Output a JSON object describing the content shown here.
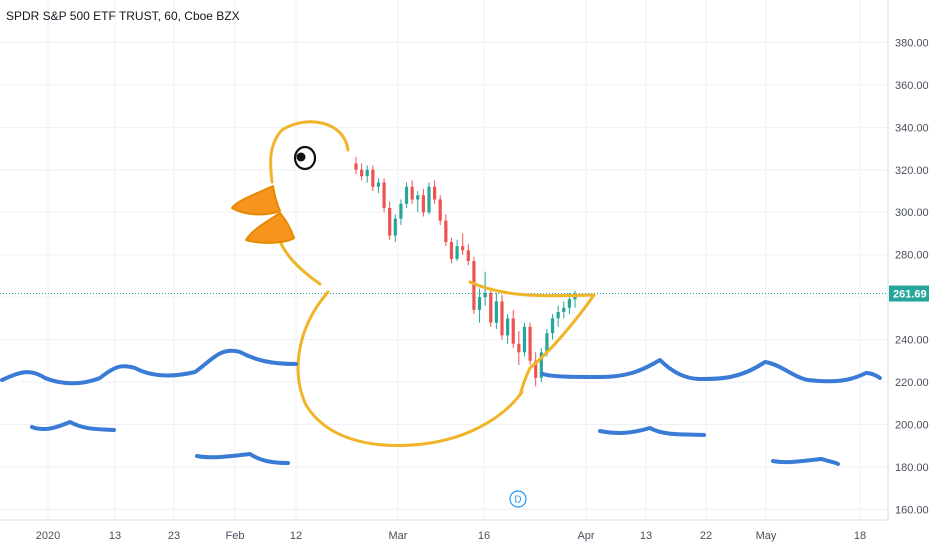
{
  "chart_data": {
    "type": "candlestick",
    "title": "SPDR S&P 500 ETF TRUST, 60, Cboe BZX",
    "y_ticks": [
      "380.00",
      "360.00",
      "340.00",
      "320.00",
      "300.00",
      "280.00",
      "260.00",
      "240.00",
      "220.00",
      "200.00",
      "180.00",
      "160.00"
    ],
    "x_ticks": [
      "2020",
      "13",
      "23",
      "Feb",
      "12",
      "Mar",
      "16",
      "Apr",
      "13",
      "22",
      "May",
      "18"
    ],
    "ylim": [
      155,
      400
    ],
    "last_price": 261.69,
    "last_price_label": "261.69",
    "event_marker": "D",
    "grid": true,
    "colors": {
      "up": "#26a69a",
      "down": "#ef5350",
      "last_price_line": "#26a69a",
      "price_tag": "#26a69a",
      "drawing_duck": "#f0b429",
      "drawing_beak": "#f57c00",
      "drawing_water": "#3a7bd5",
      "grid": "#eef0f4",
      "event": "#2196f3"
    },
    "ohlc": [
      {
        "o": 323,
        "h": 326,
        "l": 318,
        "c": 320
      },
      {
        "o": 320,
        "h": 323,
        "l": 315,
        "c": 317
      },
      {
        "o": 317,
        "h": 322,
        "l": 314,
        "c": 320
      },
      {
        "o": 320,
        "h": 322,
        "l": 310,
        "c": 312
      },
      {
        "o": 312,
        "h": 316,
        "l": 309,
        "c": 314
      },
      {
        "o": 314,
        "h": 316,
        "l": 300,
        "c": 302
      },
      {
        "o": 302,
        "h": 305,
        "l": 287,
        "c": 289
      },
      {
        "o": 289,
        "h": 299,
        "l": 286,
        "c": 297
      },
      {
        "o": 297,
        "h": 306,
        "l": 294,
        "c": 304
      },
      {
        "o": 304,
        "h": 314,
        "l": 302,
        "c": 312
      },
      {
        "o": 312,
        "h": 315,
        "l": 304,
        "c": 306
      },
      {
        "o": 306,
        "h": 310,
        "l": 300,
        "c": 308
      },
      {
        "o": 308,
        "h": 311,
        "l": 298,
        "c": 300
      },
      {
        "o": 300,
        "h": 314,
        "l": 299,
        "c": 312
      },
      {
        "o": 312,
        "h": 315,
        "l": 304,
        "c": 306
      },
      {
        "o": 306,
        "h": 308,
        "l": 294,
        "c": 296
      },
      {
        "o": 296,
        "h": 299,
        "l": 284,
        "c": 286
      },
      {
        "o": 286,
        "h": 288,
        "l": 276,
        "c": 278
      },
      {
        "o": 278,
        "h": 287,
        "l": 277,
        "c": 284
      },
      {
        "o": 284,
        "h": 290,
        "l": 280,
        "c": 282
      },
      {
        "o": 282,
        "h": 285,
        "l": 275,
        "c": 277
      },
      {
        "o": 277,
        "h": 279,
        "l": 252,
        "c": 254
      },
      {
        "o": 254,
        "h": 264,
        "l": 248,
        "c": 260
      },
      {
        "o": 260,
        "h": 272,
        "l": 256,
        "c": 262
      },
      {
        "o": 262,
        "h": 264,
        "l": 246,
        "c": 248
      },
      {
        "o": 248,
        "h": 262,
        "l": 245,
        "c": 258
      },
      {
        "o": 258,
        "h": 261,
        "l": 240,
        "c": 242
      },
      {
        "o": 242,
        "h": 252,
        "l": 238,
        "c": 250
      },
      {
        "o": 250,
        "h": 254,
        "l": 236,
        "c": 238
      },
      {
        "o": 238,
        "h": 244,
        "l": 228,
        "c": 234
      },
      {
        "o": 234,
        "h": 248,
        "l": 232,
        "c": 246
      },
      {
        "o": 246,
        "h": 248,
        "l": 228,
        "c": 230
      },
      {
        "o": 230,
        "h": 234,
        "l": 218,
        "c": 222
      },
      {
        "o": 222,
        "h": 236,
        "l": 220,
        "c": 234
      },
      {
        "o": 234,
        "h": 245,
        "l": 232,
        "c": 243
      },
      {
        "o": 243,
        "h": 252,
        "l": 240,
        "c": 250
      },
      {
        "o": 250,
        "h": 256,
        "l": 246,
        "c": 253
      },
      {
        "o": 253,
        "h": 258,
        "l": 250,
        "c": 255
      },
      {
        "o": 255,
        "h": 262,
        "l": 252,
        "c": 259
      },
      {
        "o": 259,
        "h": 263,
        "l": 255,
        "c": 261.69
      }
    ]
  }
}
